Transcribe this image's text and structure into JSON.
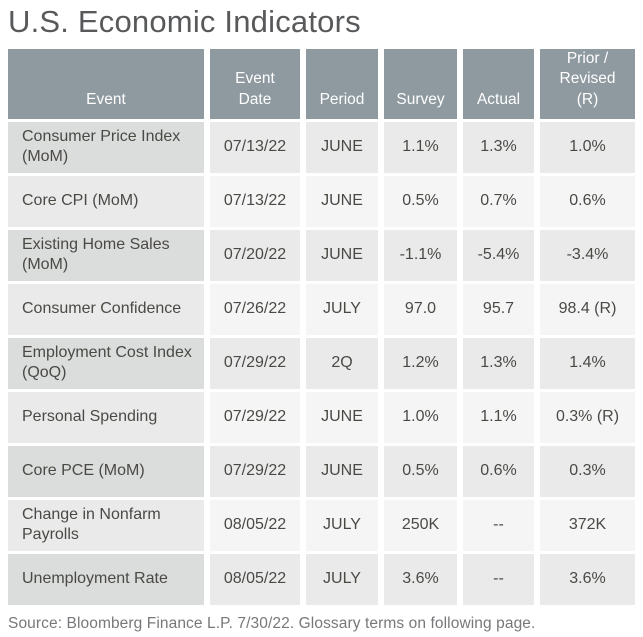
{
  "page": {
    "title": "U.S. Economic Indicators",
    "source_note": "Source: Bloomberg Finance L.P. 7/30/22. Glossary terms on following page."
  },
  "colors": {
    "header_bg": "#8e99a0",
    "header_text": "#ffffff",
    "row_event_dark": "#dbdcdc",
    "row_value_dark": "#eaeaeb",
    "row_event_light": "#eaeaeb",
    "row_value_light": "#f5f5f6",
    "cell_text": "#4a4a45",
    "title_text": "#58595b",
    "source_text": "#77787b"
  },
  "table": {
    "columns": [
      {
        "key": "event",
        "label": "Event"
      },
      {
        "key": "event_date",
        "label": "Event\nDate"
      },
      {
        "key": "period",
        "label": "Period"
      },
      {
        "key": "survey",
        "label": "Survey"
      },
      {
        "key": "actual",
        "label": "Actual"
      },
      {
        "key": "prior_revised",
        "label": "Prior /\nRevised\n(R)"
      }
    ],
    "rows": [
      {
        "event": "Consumer Price Index (MoM)",
        "event_date": "07/13/22",
        "period": "JUNE",
        "survey": "1.1%",
        "actual": "1.3%",
        "prior_revised": "1.0%"
      },
      {
        "event": "Core CPI (MoM)",
        "event_date": "07/13/22",
        "period": "JUNE",
        "survey": "0.5%",
        "actual": "0.7%",
        "prior_revised": "0.6%"
      },
      {
        "event": "Existing Home Sales (MoM)",
        "event_date": "07/20/22",
        "period": "JUNE",
        "survey": "-1.1%",
        "actual": "-5.4%",
        "prior_revised": "-3.4%"
      },
      {
        "event": "Consumer Confidence",
        "event_date": "07/26/22",
        "period": "JULY",
        "survey": "97.0",
        "actual": "95.7",
        "prior_revised": "98.4 (R)"
      },
      {
        "event": "Employment Cost Index (QoQ)",
        "event_date": "07/29/22",
        "period": "2Q",
        "survey": "1.2%",
        "actual": "1.3%",
        "prior_revised": "1.4%"
      },
      {
        "event": "Personal Spending",
        "event_date": "07/29/22",
        "period": "JUNE",
        "survey": "1.0%",
        "actual": "1.1%",
        "prior_revised": "0.3% (R)"
      },
      {
        "event": "Core PCE (MoM)",
        "event_date": "07/29/22",
        "period": "JUNE",
        "survey": "0.5%",
        "actual": "0.6%",
        "prior_revised": "0.3%"
      },
      {
        "event": "Change in Nonfarm Payrolls",
        "event_date": "08/05/22",
        "period": "JULY",
        "survey": "250K",
        "actual": "--",
        "prior_revised": "372K"
      },
      {
        "event": "Unemployment Rate",
        "event_date": "08/05/22",
        "period": "JULY",
        "survey": "3.6%",
        "actual": "--",
        "prior_revised": "3.6%"
      }
    ]
  }
}
